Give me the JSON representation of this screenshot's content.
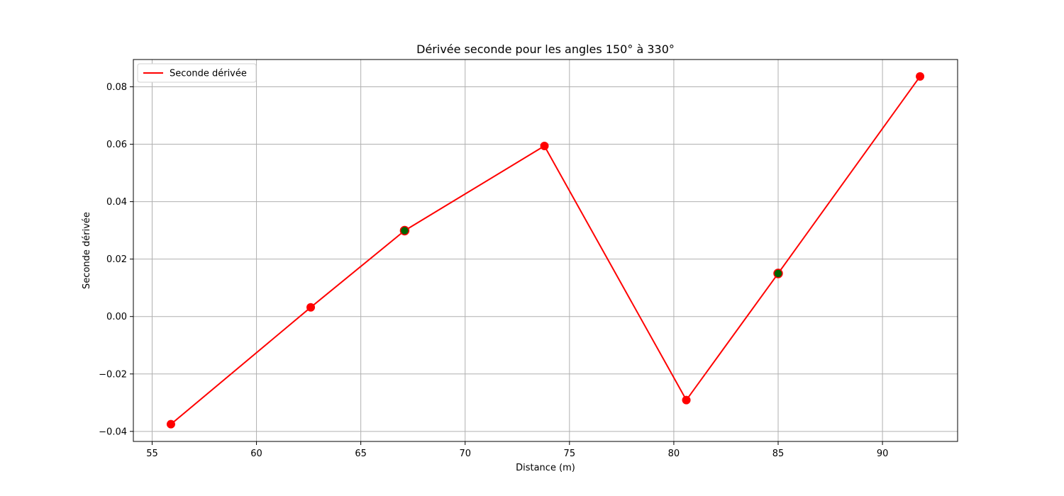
{
  "chart_data": {
    "type": "line",
    "title": "Dérivée seconde pour les angles 150° à 330°",
    "xlabel": "Distance (m)",
    "ylabel": "Seconde dérivée",
    "xlim": [
      54.1,
      93.6
    ],
    "ylim": [
      -0.0435,
      0.0895
    ],
    "xticks": [
      55,
      60,
      65,
      70,
      75,
      80,
      85,
      90
    ],
    "xtick_labels": [
      "55",
      "60",
      "65",
      "70",
      "75",
      "80",
      "85",
      "90"
    ],
    "yticks": [
      -0.04,
      -0.02,
      0.0,
      0.02,
      0.04,
      0.06,
      0.08
    ],
    "ytick_labels": [
      "−0.04",
      "−0.02",
      "0.00",
      "0.02",
      "0.04",
      "0.06",
      "0.08"
    ],
    "grid": true,
    "legend_position": "top-left",
    "series": [
      {
        "name": "Seconde dérivée",
        "color": "#ff0000",
        "x": [
          55.9,
          62.6,
          67.1,
          73.8,
          80.6,
          85.0,
          91.8
        ],
        "y": [
          -0.0375,
          0.0032,
          0.0299,
          0.0594,
          -0.0291,
          0.015,
          0.0836
        ]
      }
    ],
    "markers": {
      "points_x": [
        55.9,
        62.6,
        67.1,
        73.8,
        80.6,
        85.0,
        91.8
      ],
      "points_y": [
        -0.0375,
        0.0032,
        0.0299,
        0.0594,
        -0.0291,
        0.015,
        0.0836
      ],
      "colors": [
        "#ff0000",
        "#ff0000",
        "#006400",
        "#ff0000",
        "#ff0000",
        "#006400",
        "#ff0000"
      ]
    }
  }
}
